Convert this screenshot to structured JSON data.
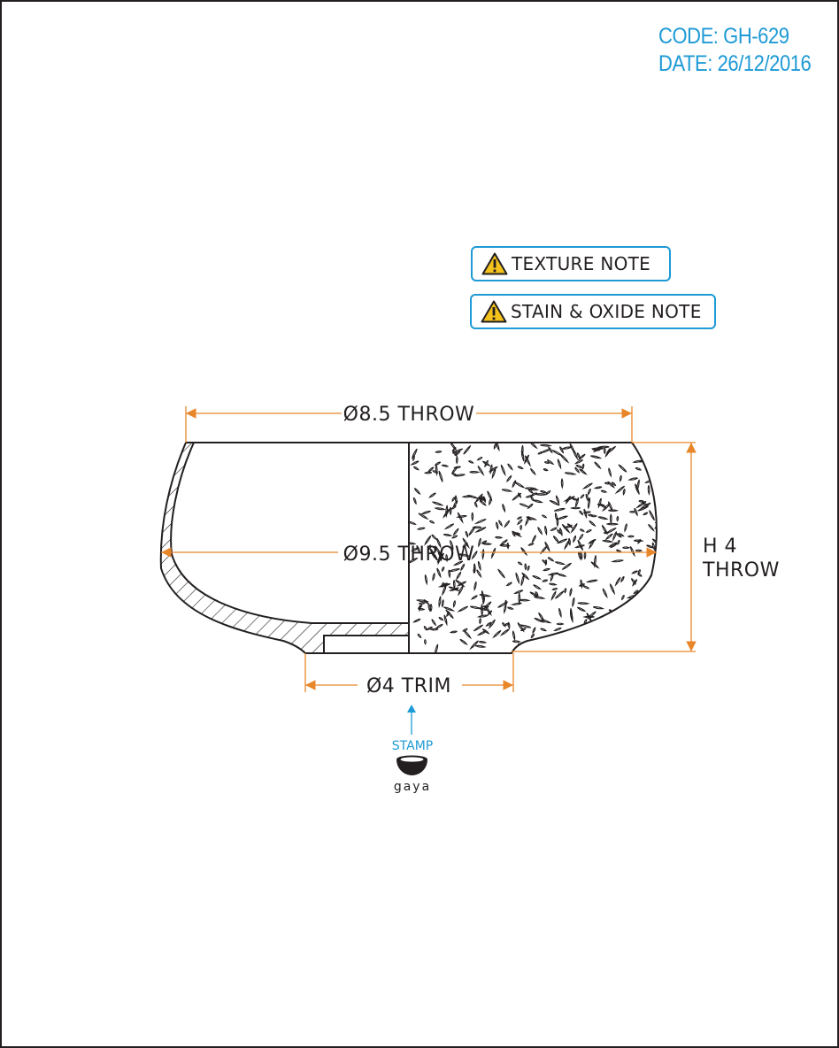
{
  "header": {
    "code": "CODE: GH-629",
    "date": "DATE: 26/12/2016"
  },
  "notes": {
    "texture": "TEXTURE NOTE",
    "stain_oxide": "STAIN & OXIDE NOTE",
    "icon": "warning-triangle-icon"
  },
  "dimensions": {
    "rim": "Ø8.5 THROW",
    "belly": "Ø9.5 THROW",
    "height_line1": "H 4",
    "height_line2": "THROW",
    "foot": "Ø4 TRIM"
  },
  "stamp": {
    "label": "STAMP",
    "logo_text": "gaya"
  },
  "colors": {
    "dimension_lines": "#e8862a",
    "accent": "#1e9ad6",
    "ink": "#231f20"
  }
}
